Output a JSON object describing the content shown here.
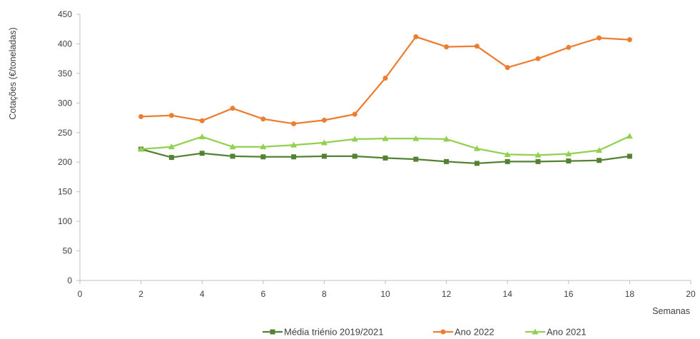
{
  "chart_data": {
    "type": "line",
    "title": "",
    "xlabel": "Semanas",
    "ylabel": "Cotações (€/toneladas)",
    "xlim": [
      0,
      20
    ],
    "ylim": [
      0,
      450
    ],
    "xticks": [
      0,
      2,
      4,
      6,
      8,
      10,
      12,
      14,
      16,
      18,
      20
    ],
    "yticks": [
      0,
      50,
      100,
      150,
      200,
      250,
      300,
      350,
      400,
      450
    ],
    "grid": false,
    "legend_position": "bottom",
    "series": [
      {
        "name": "Média triénio 2019/2021",
        "color": "#548235",
        "marker": "square",
        "x": [
          2,
          3,
          4,
          5,
          6,
          7,
          8,
          9,
          10,
          11,
          12,
          13,
          14,
          15,
          16,
          17,
          18
        ],
        "y": [
          222,
          208,
          215,
          210,
          209,
          209,
          210,
          210,
          207,
          205,
          201,
          198,
          201,
          201,
          202,
          203,
          210
        ]
      },
      {
        "name": "Ano 2022",
        "color": "#ED7D31",
        "marker": "circle",
        "x": [
          2,
          3,
          4,
          5,
          6,
          7,
          8,
          9,
          10,
          11,
          12,
          13,
          14,
          15,
          16,
          17,
          18
        ],
        "y": [
          277,
          279,
          270,
          291,
          273,
          265,
          271,
          281,
          342,
          412,
          395,
          396,
          360,
          375,
          394,
          410,
          407
        ]
      },
      {
        "name": "Ano 2021",
        "color": "#92D050",
        "marker": "triangle",
        "x": [
          2,
          3,
          4,
          5,
          6,
          7,
          8,
          9,
          10,
          11,
          12,
          13,
          14,
          15,
          16,
          17,
          18
        ],
        "y": [
          222,
          226,
          243,
          226,
          226,
          229,
          233,
          239,
          240,
          240,
          239,
          223,
          213,
          212,
          214,
          220,
          244
        ]
      }
    ]
  }
}
